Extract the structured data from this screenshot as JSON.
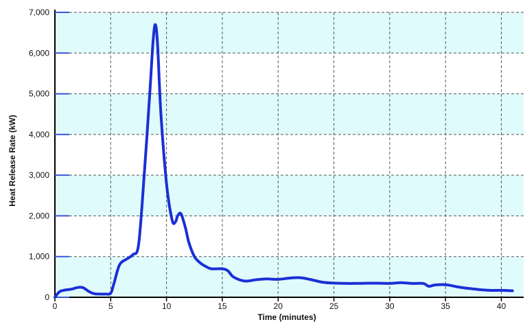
{
  "chart_data": {
    "type": "line",
    "title": "",
    "xlabel": "Time (minutes)",
    "ylabel": "Heat Release Rate (kW)",
    "xlim": [
      0,
      42
    ],
    "ylim": [
      0,
      7000
    ],
    "x_ticks": [
      0,
      5,
      10,
      15,
      20,
      25,
      30,
      35,
      40
    ],
    "x_tick_labels": [
      "0",
      "5",
      "10",
      "15",
      "20",
      "25",
      "30",
      "35",
      "40"
    ],
    "y_ticks": [
      0,
      1000,
      2000,
      3000,
      4000,
      5000,
      6000,
      7000
    ],
    "y_tick_labels": [
      "0",
      "1,000",
      "2,000",
      "3,000",
      "4,000",
      "5,000",
      "6,000",
      "7,000"
    ],
    "grid": true,
    "legend": "none",
    "colors": {
      "line": "#1a2fd6",
      "band": "#e0fbfb",
      "grid": "#555555",
      "axis": "#000000",
      "tick_mark": "#3a55d8"
    },
    "series": [
      {
        "x": [
          0,
          0.5,
          1.5,
          2.0,
          2.5,
          3.0,
          3.5,
          4.0,
          4.5,
          5.0,
          5.3,
          5.8,
          6.5,
          7.0,
          7.5,
          8.0,
          8.5,
          8.8,
          9.0,
          9.2,
          9.5,
          10.0,
          10.5,
          10.8,
          11.0,
          11.3,
          11.7,
          12.0,
          12.5,
          13.0,
          13.5,
          14.0,
          15.0,
          15.5,
          16.0,
          17.0,
          18.0,
          19.0,
          20.0,
          21.0,
          22.0,
          23.0,
          24.0,
          25.0,
          26.0,
          27.0,
          28.0,
          29.0,
          30.0,
          31.0,
          32.0,
          33.0,
          33.5,
          34.0,
          35.0,
          36.0,
          37.0,
          38.0,
          39.0,
          40.0,
          41.0
        ],
        "y": [
          0,
          150,
          200,
          240,
          240,
          150,
          90,
          80,
          80,
          100,
          350,
          800,
          950,
          1050,
          1300,
          3000,
          5000,
          6300,
          6700,
          6200,
          4500,
          2800,
          1900,
          1850,
          2000,
          2050,
          1700,
          1350,
          1000,
          850,
          760,
          700,
          700,
          650,
          500,
          400,
          430,
          450,
          440,
          470,
          480,
          430,
          370,
          350,
          340,
          340,
          345,
          345,
          340,
          360,
          340,
          340,
          270,
          300,
          310,
          260,
          220,
          190,
          170,
          170,
          160
        ]
      }
    ]
  }
}
